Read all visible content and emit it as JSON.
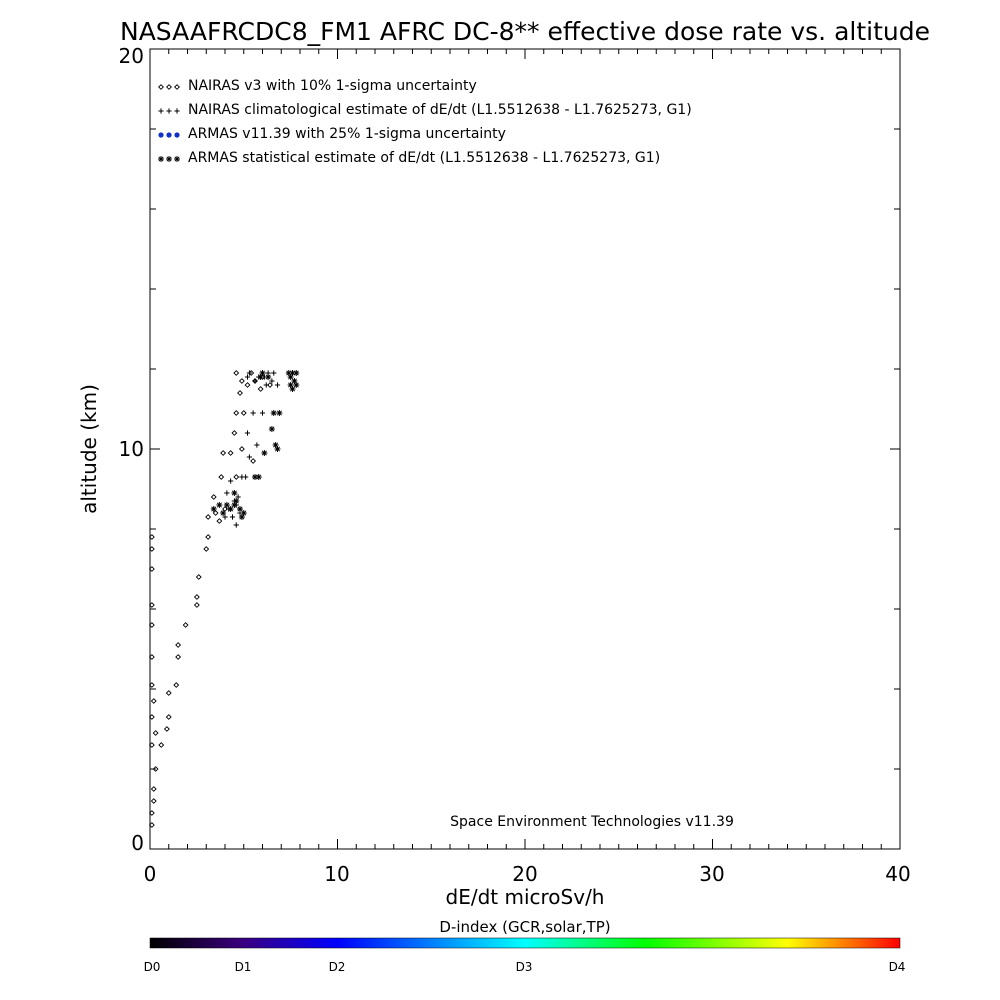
{
  "chart_data": {
    "type": "scatter",
    "title": "NASAAFRCDC8_FM1 AFRC DC-8** effective dose rate vs. altitude",
    "xlabel": "dE/dt microSv/h",
    "ylabel": "altitude (km)",
    "xlim": [
      0,
      40
    ],
    "ylim": [
      0,
      20
    ],
    "x_ticks": [
      "0",
      "10",
      "20",
      "30",
      "40"
    ],
    "y_ticks": [
      "0",
      "10",
      "20"
    ],
    "grid": false,
    "legend_position": "top-left",
    "annotation": "Space Environment Technologies v11.39",
    "colorbar": {
      "title": "D-index (GCR,solar,TP)",
      "labels": [
        "D0",
        "D1",
        "D2",
        "D3",
        "D4"
      ],
      "label_positions": [
        0,
        0.125,
        0.25,
        0.5,
        1.0
      ],
      "colors": [
        "#000000",
        "#3a0080",
        "#0000ff",
        "#00ffff",
        "#00ff00",
        "#ffff00",
        "#ff0000"
      ]
    },
    "series": [
      {
        "name": "NAIRAS v3 with 10% 1-sigma uncertainty",
        "marker": "diamond",
        "color": "#000000",
        "points": [
          [
            0.1,
            0.6
          ],
          [
            0.1,
            0.9
          ],
          [
            0.2,
            1.2
          ],
          [
            0.2,
            1.5
          ],
          [
            0.3,
            2.0
          ],
          [
            0.1,
            2.6
          ],
          [
            0.3,
            2.9
          ],
          [
            0.1,
            3.3
          ],
          [
            0.2,
            3.7
          ],
          [
            0.1,
            4.1
          ],
          [
            0.1,
            4.8
          ],
          [
            0.1,
            5.6
          ],
          [
            0.1,
            6.1
          ],
          [
            0.1,
            7.0
          ],
          [
            0.1,
            7.5
          ],
          [
            0.1,
            7.8
          ],
          [
            0.6,
            2.6
          ],
          [
            0.9,
            3.0
          ],
          [
            1.0,
            3.3
          ],
          [
            1.0,
            3.9
          ],
          [
            1.4,
            4.1
          ],
          [
            1.5,
            4.8
          ],
          [
            1.5,
            5.1
          ],
          [
            1.9,
            5.6
          ],
          [
            2.5,
            6.1
          ],
          [
            2.5,
            6.3
          ],
          [
            2.6,
            6.8
          ],
          [
            3.0,
            7.5
          ],
          [
            3.1,
            7.8
          ],
          [
            3.1,
            8.3
          ],
          [
            3.4,
            8.8
          ],
          [
            3.8,
            9.3
          ],
          [
            3.9,
            9.9
          ],
          [
            4.6,
            10.9
          ],
          [
            4.6,
            11.9
          ],
          [
            5.4,
            11.9
          ],
          [
            5.6,
            11.7
          ],
          [
            6.0,
            11.8
          ],
          [
            5.9,
            11.5
          ],
          [
            4.9,
            11.7
          ],
          [
            4.5,
            10.4
          ],
          [
            4.3,
            9.9
          ],
          [
            4.0,
            8.5
          ],
          [
            3.5,
            8.4
          ],
          [
            3.7,
            8.2
          ],
          [
            4.9,
            10.0
          ],
          [
            5.5,
            9.7
          ],
          [
            4.6,
            9.3
          ],
          [
            5.2,
            11.6
          ],
          [
            4.8,
            11.4
          ],
          [
            6.4,
            11.6
          ],
          [
            5.0,
            10.9
          ]
        ]
      },
      {
        "name": "NAIRAS climatological estimate of dE/dt (L1.5512638 - L1.7625273, G1)",
        "marker": "plus",
        "color": "#000000",
        "points": [
          [
            4.0,
            8.3
          ],
          [
            4.2,
            8.5
          ],
          [
            4.4,
            8.3
          ],
          [
            4.6,
            8.6
          ],
          [
            4.8,
            8.4
          ],
          [
            4.7,
            8.8
          ],
          [
            4.3,
            9.2
          ],
          [
            4.9,
            9.3
          ],
          [
            5.1,
            9.3
          ],
          [
            5.3,
            9.8
          ],
          [
            5.7,
            10.1
          ],
          [
            5.2,
            10.4
          ],
          [
            5.5,
            10.9
          ],
          [
            6.0,
            10.9
          ],
          [
            6.1,
            11.8
          ],
          [
            6.3,
            11.9
          ],
          [
            6.6,
            11.9
          ],
          [
            6.8,
            11.6
          ],
          [
            5.8,
            11.8
          ],
          [
            5.3,
            11.9
          ],
          [
            6.5,
            11.7
          ],
          [
            6.2,
            11.6
          ],
          [
            4.5,
            8.7
          ],
          [
            4.1,
            8.9
          ],
          [
            4.6,
            8.1
          ],
          [
            5.6,
            11.7
          ],
          [
            5.2,
            11.8
          ]
        ]
      },
      {
        "name": "ARMAS v11.39 with 25% 1-sigma uncertainty",
        "marker": "dot",
        "color": "#1030c8",
        "points": []
      },
      {
        "name": "ARMAS statistical estimate of dE/dt (L1.5512638 - L1.7625273, G1)",
        "marker": "asterisk",
        "color": "#000000",
        "points": [
          [
            3.4,
            8.5
          ],
          [
            3.7,
            8.6
          ],
          [
            3.9,
            8.4
          ],
          [
            4.1,
            8.6
          ],
          [
            4.3,
            8.5
          ],
          [
            4.5,
            8.6
          ],
          [
            4.8,
            8.5
          ],
          [
            4.6,
            8.7
          ],
          [
            4.9,
            8.3
          ],
          [
            4.5,
            8.9
          ],
          [
            5.6,
            9.3
          ],
          [
            5.8,
            9.3
          ],
          [
            6.1,
            9.9
          ],
          [
            6.5,
            10.5
          ],
          [
            6.8,
            10.0
          ],
          [
            6.7,
            10.1
          ],
          [
            6.6,
            10.9
          ],
          [
            6.9,
            10.9
          ],
          [
            7.4,
            11.9
          ],
          [
            7.5,
            11.8
          ],
          [
            7.6,
            11.9
          ],
          [
            7.7,
            11.7
          ],
          [
            7.8,
            11.9
          ],
          [
            7.5,
            11.6
          ],
          [
            7.8,
            11.6
          ],
          [
            6.0,
            11.9
          ],
          [
            5.9,
            11.8
          ],
          [
            6.3,
            11.8
          ],
          [
            7.6,
            11.5
          ],
          [
            5.0,
            8.4
          ]
        ]
      }
    ]
  }
}
